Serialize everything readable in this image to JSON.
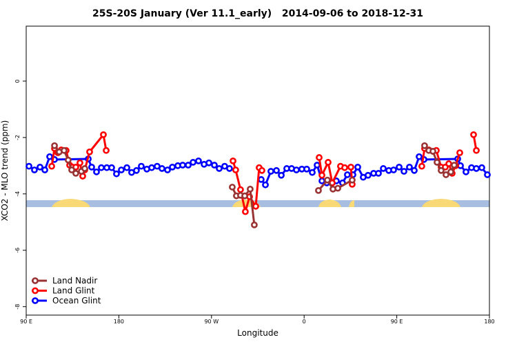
{
  "chart_data": {
    "type": "line",
    "title": "25S-20S January (Ver 11.1_early)   2014-09-06 to 2018-12-31",
    "x_label": "Longitude",
    "y_label": "XCO2 - MLO trend (ppm)",
    "xlim": [
      90,
      540
    ],
    "xticks": [
      {
        "value": 90,
        "label": "90 E"
      },
      {
        "value": 180,
        "label": "180"
      },
      {
        "value": 270,
        "label": "90 W"
      },
      {
        "value": 360,
        "label": "0"
      },
      {
        "value": 450,
        "label": "90 E"
      },
      {
        "value": 540,
        "label": "180"
      }
    ],
    "ylim": [
      -8.3,
      1.95
    ],
    "yticks": [
      0,
      -2,
      -4,
      -6,
      -8
    ],
    "legend": "bottom-left",
    "series": [
      {
        "name": "Land Nadir",
        "color": "#993333",
        "x": [
          117.5,
          122.1,
          126.8,
          130.8,
          134.2,
          138.2,
          143.6,
          146.9,
          null,
          290.2,
          294.2,
          298.2,
          302.3,
          307.6,
          311.6,
          null,
          373.9,
          382.6,
          388.0,
          392.7,
          406.7,
          null,
          477.0,
          481.1,
          485.1,
          489.1,
          493.1,
          497.8,
          502.5,
          505.8
        ],
        "values": [
          -2.29,
          -2.51,
          -2.46,
          -2.8,
          -3.15,
          -3.27,
          -3.2,
          -3.1,
          null,
          -3.76,
          -4.07,
          -4.05,
          -4.07,
          -3.83,
          -5.1,
          null,
          -3.88,
          -3.51,
          -3.83,
          -3.8,
          -3.51,
          null,
          -2.29,
          -2.46,
          -2.49,
          -2.88,
          -3.17,
          -3.32,
          -3.22,
          -2.98
        ]
      },
      {
        "name": "Land Glint",
        "color": "#ff0000",
        "x": [
          114.8,
          117.5,
          120.8,
          124.1,
          128.8,
          132.2,
          134.9,
          138.2,
          142.2,
          144.9,
          146.9,
          151.6,
          165.0,
          167.7,
          null,
          290.9,
          293.5,
          298.2,
          302.9,
          307.0,
          313.0,
          316.3,
          319.0,
          null,
          374.6,
          377.3,
          383.3,
          387.3,
          395.3,
          399.4,
          405.4,
          406.7,
          null,
          474.3,
          477.0,
          481.1,
          485.1,
          488.4,
          493.1,
          497.1,
          500.5,
          503.8,
          507.2,
          511.2,
          null,
          524.6,
          527.3
        ],
        "values": [
          -3.02,
          -2.39,
          -2.54,
          -2.44,
          -2.46,
          -2.98,
          -3.05,
          -3.05,
          -2.9,
          -3.37,
          -3.15,
          -2.51,
          -1.9,
          -2.46,
          null,
          -2.83,
          -3.15,
          -3.85,
          -4.63,
          -4.1,
          -4.44,
          -3.07,
          -3.17,
          null,
          -2.71,
          -3.34,
          -2.88,
          -3.61,
          -3.02,
          -3.07,
          -3.05,
          -3.66,
          null,
          -3.02,
          -2.39,
          -2.44,
          -2.49,
          -2.46,
          -3.05,
          -3.05,
          -2.93,
          -3.27,
          -3.0,
          -2.54,
          null,
          -1.9,
          -2.46
        ]
      },
      {
        "name": "Ocean Glint",
        "color": "#0000ff",
        "x": [
          92.7,
          98.0,
          103.4,
          108.1,
          112.8,
          117.5,
          150.3,
          153.6,
          158.3,
          163.0,
          168.3,
          173.0,
          177.7,
          182.4,
          187.8,
          192.4,
          197.1,
          201.8,
          207.2,
          211.9,
          217.2,
          221.9,
          227.3,
          232.0,
          237.3,
          242.0,
          247.4,
          252.1,
          257.4,
          262.8,
          267.5,
          272.8,
          277.5,
          282.8,
          287.5,
          null,
          318.3,
          322.4,
          327.7,
          333.1,
          337.8,
          343.1,
          347.8,
          352.5,
          357.8,
          362.5,
          367.9,
          372.6,
          377.3,
          382.0,
          386.6,
          391.3,
          397.3,
          402.0,
          407.4,
          412.1,
          417.4,
          422.1,
          427.5,
          432.2,
          436.9,
          442.2,
          446.9,
          452.3,
          457.0,
          462.3,
          467.0,
          471.7,
          476.4,
          509.2,
          511.9,
          517.2,
          522.6,
          527.3,
          532.6,
          538.0
        ],
        "values": [
          -3.02,
          -3.15,
          -3.05,
          -3.15,
          -2.68,
          -2.78,
          -2.76,
          -3.05,
          -3.22,
          -3.07,
          -3.07,
          -3.07,
          -3.29,
          -3.15,
          -3.07,
          -3.24,
          -3.17,
          -3.02,
          -3.12,
          -3.07,
          -3.02,
          -3.1,
          -3.15,
          -3.05,
          -3.0,
          -2.98,
          -2.98,
          -2.88,
          -2.83,
          -2.95,
          -2.9,
          -2.98,
          -3.1,
          -3.02,
          -3.1,
          null,
          -3.49,
          -3.68,
          -3.2,
          -3.17,
          -3.34,
          -3.1,
          -3.1,
          -3.15,
          -3.12,
          -3.12,
          -3.24,
          -2.98,
          -3.54,
          -3.61,
          -3.61,
          -3.54,
          -3.61,
          -3.32,
          -3.32,
          -3.05,
          -3.41,
          -3.34,
          -3.27,
          -3.27,
          -3.1,
          -3.17,
          -3.15,
          -3.05,
          -3.2,
          -3.05,
          -3.17,
          -2.68,
          -2.78,
          -2.76,
          -3.0,
          -3.22,
          -3.07,
          -3.1,
          -3.07,
          -3.32
        ]
      }
    ]
  }
}
